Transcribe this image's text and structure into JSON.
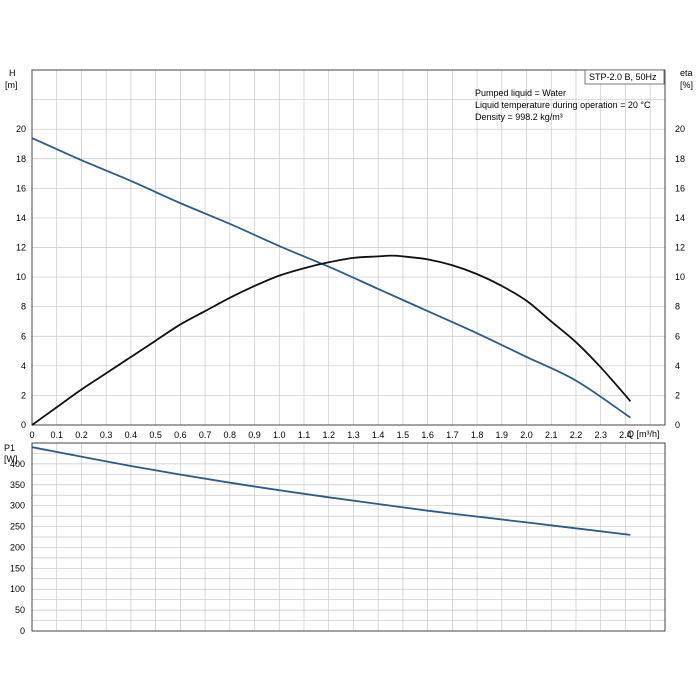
{
  "chart_data": [
    {
      "type": "line",
      "model_label": "STP-2.0 B, 50Hz",
      "notes": [
        "Pumped liquid = Water",
        "Liquid temperature during operation = 20 °C",
        "Density = 998.2 kg/m³"
      ],
      "x_axis": {
        "label": "Q [m³/h]",
        "ticks": [
          "0",
          "0.1",
          "0.2",
          "0.3",
          "0.4",
          "0.5",
          "0.6",
          "0.7",
          "0.8",
          "0.9",
          "1.0",
          "1.1",
          "1.2",
          "1.3",
          "1.4",
          "1.5",
          "1.6",
          "1.7",
          "1.8",
          "1.9",
          "2.0",
          "2.1",
          "2.2",
          "2.3",
          "2.4"
        ],
        "lim": [
          0,
          2.56
        ]
      },
      "y_left": {
        "label_top": "H",
        "label_unit": "[m]",
        "ticks": [
          "0",
          "2",
          "4",
          "6",
          "8",
          "10",
          "12",
          "14",
          "16",
          "18",
          "20"
        ],
        "lim": [
          0,
          24
        ]
      },
      "y_right": {
        "label_top": "eta",
        "label_unit": "[%]",
        "ticks": [
          "0",
          "2",
          "4",
          "6",
          "8",
          "10",
          "12",
          "14",
          "16",
          "18",
          "20"
        ],
        "lim": [
          0,
          24
        ]
      },
      "grid": true,
      "series": [
        {
          "color": "#2a5b8c",
          "axis": "left",
          "x": [
            0,
            0.2,
            0.4,
            0.6,
            0.8,
            1.0,
            1.2,
            1.4,
            1.6,
            1.8,
            2.0,
            2.2,
            2.42
          ],
          "y": [
            19.4,
            17.9,
            16.5,
            15.0,
            13.6,
            12.1,
            10.7,
            9.2,
            7.7,
            6.2,
            4.6,
            3.0,
            0.5
          ]
        },
        {
          "color": "#111111",
          "axis": "right",
          "x": [
            0,
            0.1,
            0.2,
            0.3,
            0.4,
            0.5,
            0.6,
            0.7,
            0.8,
            0.9,
            1.0,
            1.1,
            1.2,
            1.3,
            1.4,
            1.45,
            1.5,
            1.6,
            1.7,
            1.8,
            1.9,
            2.0,
            2.1,
            2.2,
            2.3,
            2.4,
            2.42
          ],
          "y": [
            0.0,
            1.2,
            2.4,
            3.5,
            4.6,
            5.7,
            6.8,
            7.7,
            8.6,
            9.4,
            10.1,
            10.6,
            11.0,
            11.3,
            11.4,
            11.45,
            11.4,
            11.2,
            10.8,
            10.2,
            9.4,
            8.4,
            7.0,
            5.6,
            3.9,
            2.0,
            1.6
          ]
        }
      ]
    },
    {
      "type": "line",
      "x_axis": {
        "ticks": [
          "0",
          "0.1",
          "0.2",
          "0.3",
          "0.4",
          "0.5",
          "0.6",
          "0.7",
          "0.8",
          "0.9",
          "1.0",
          "1.1",
          "1.2",
          "1.3",
          "1.4",
          "1.5",
          "1.6",
          "1.7",
          "1.8",
          "1.9",
          "2.0",
          "2.1",
          "2.2",
          "2.3",
          "2.4"
        ],
        "lim": [
          0,
          2.56
        ]
      },
      "y_left": {
        "label_top": "P1",
        "label_unit": "[W]",
        "ticks": [
          "0",
          "50",
          "100",
          "150",
          "200",
          "250",
          "300",
          "350",
          "400"
        ],
        "lim": [
          0,
          450
        ]
      },
      "grid": true,
      "series": [
        {
          "color": "#2a5b8c",
          "axis": "left",
          "x": [
            0,
            0.4,
            0.8,
            1.2,
            1.6,
            2.0,
            2.42
          ],
          "y": [
            440,
            395,
            355,
            320,
            288,
            260,
            230
          ]
        }
      ]
    }
  ]
}
